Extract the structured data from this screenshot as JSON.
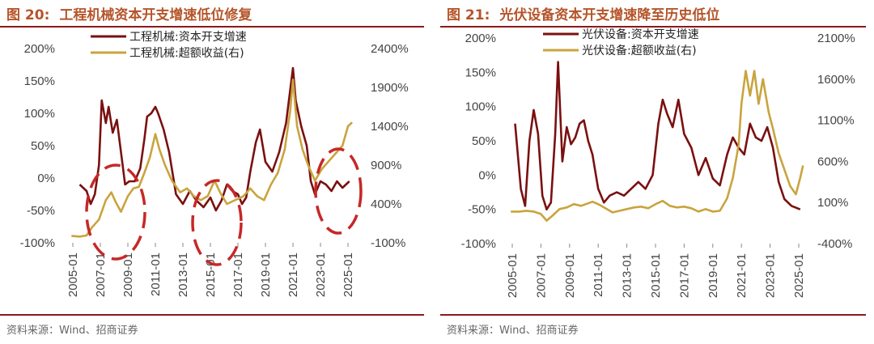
{
  "panels": [
    {
      "figure_number": "图 20:",
      "title": "工程机械资本开支增速低位修复",
      "source": "资料来源：Wind、招商证券"
    },
    {
      "figure_number": "图 21:",
      "title": "光伏设备资本开支增速降至历史低位",
      "source": "资料来源：Wind、招商证券"
    }
  ],
  "colors": {
    "capex": "#7a1010",
    "excess": "#c9a43e",
    "highlight": "#c62828",
    "rule": "#8a1a1a",
    "title": "#b5552a"
  },
  "chart_data": [
    {
      "type": "line",
      "title": "工程机械资本开支增速低位修复",
      "x_tick_labels": [
        "2005-01",
        "2007-01",
        "2009-01",
        "2011-01",
        "2013-01",
        "2015-01",
        "2017-01",
        "2019-01",
        "2021-01",
        "2023-01",
        "2025-01"
      ],
      "y_left": {
        "ticks": [
          "-100%",
          "-50%",
          "0%",
          "50%",
          "100%",
          "150%",
          "200%"
        ],
        "lim": [
          -100,
          200
        ]
      },
      "y_right": {
        "ticks": [
          "-100%",
          "400%",
          "900%",
          "1400%",
          "1900%",
          "2400%"
        ],
        "lim": [
          -100,
          2400
        ]
      },
      "legend": {
        "position": "top-center"
      },
      "highlights": [
        "2009",
        "2016",
        "2024"
      ],
      "series": [
        {
          "name": "工程机械:资本开支增速",
          "axis": "left",
          "points": [
            [
              2005.5,
              -10
            ],
            [
              2006.0,
              -20
            ],
            [
              2006.3,
              -40
            ],
            [
              2006.6,
              -25
            ],
            [
              2006.9,
              20
            ],
            [
              2007.1,
              120
            ],
            [
              2007.4,
              85
            ],
            [
              2007.6,
              110
            ],
            [
              2007.9,
              70
            ],
            [
              2008.2,
              90
            ],
            [
              2008.5,
              40
            ],
            [
              2008.8,
              -10
            ],
            [
              2009.1,
              -5
            ],
            [
              2009.5,
              -5
            ],
            [
              2009.9,
              15
            ],
            [
              2010.2,
              60
            ],
            [
              2010.4,
              95
            ],
            [
              2010.7,
              100
            ],
            [
              2011.0,
              110
            ],
            [
              2011.2,
              100
            ],
            [
              2011.6,
              75
            ],
            [
              2012.0,
              40
            ],
            [
              2012.5,
              -25
            ],
            [
              2013.0,
              -40
            ],
            [
              2013.5,
              -20
            ],
            [
              2014.0,
              -35
            ],
            [
              2014.5,
              -45
            ],
            [
              2015.0,
              -30
            ],
            [
              2015.4,
              -50
            ],
            [
              2015.8,
              -35
            ],
            [
              2016.2,
              -10
            ],
            [
              2016.6,
              -20
            ],
            [
              2017.0,
              -25
            ],
            [
              2017.3,
              -40
            ],
            [
              2017.6,
              -30
            ],
            [
              2017.9,
              10
            ],
            [
              2018.3,
              55
            ],
            [
              2018.6,
              75
            ],
            [
              2019.0,
              25
            ],
            [
              2019.5,
              10
            ],
            [
              2020.0,
              40
            ],
            [
              2020.5,
              85
            ],
            [
              2021.0,
              170
            ],
            [
              2021.2,
              120
            ],
            [
              2021.6,
              80
            ],
            [
              2022.0,
              50
            ],
            [
              2022.3,
              -5
            ],
            [
              2022.6,
              -25
            ],
            [
              2023.0,
              -5
            ],
            [
              2023.4,
              -10
            ],
            [
              2023.8,
              -20
            ],
            [
              2024.2,
              -5
            ],
            [
              2024.6,
              -15
            ],
            [
              2025.1,
              -5
            ]
          ]
        },
        {
          "name": "工程机械:超额收益(右)",
          "axis": "right",
          "points": [
            [
              2004.9,
              -10
            ],
            [
              2005.5,
              -20
            ],
            [
              2006.0,
              -5
            ],
            [
              2006.4,
              100
            ],
            [
              2006.9,
              200
            ],
            [
              2007.4,
              450
            ],
            [
              2007.8,
              550
            ],
            [
              2008.1,
              430
            ],
            [
              2008.5,
              300
            ],
            [
              2009.0,
              500
            ],
            [
              2009.4,
              600
            ],
            [
              2009.8,
              620
            ],
            [
              2010.2,
              800
            ],
            [
              2010.6,
              1000
            ],
            [
              2011.0,
              1300
            ],
            [
              2011.3,
              1100
            ],
            [
              2011.7,
              900
            ],
            [
              2012.2,
              700
            ],
            [
              2012.8,
              550
            ],
            [
              2013.3,
              600
            ],
            [
              2013.8,
              500
            ],
            [
              2014.3,
              450
            ],
            [
              2014.8,
              500
            ],
            [
              2015.3,
              700
            ],
            [
              2015.7,
              550
            ],
            [
              2016.2,
              400
            ],
            [
              2016.8,
              450
            ],
            [
              2017.4,
              500
            ],
            [
              2017.9,
              600
            ],
            [
              2018.4,
              500
            ],
            [
              2018.9,
              450
            ],
            [
              2019.4,
              650
            ],
            [
              2019.9,
              800
            ],
            [
              2020.4,
              1100
            ],
            [
              2020.8,
              1600
            ],
            [
              2021.0,
              2000
            ],
            [
              2021.3,
              1400
            ],
            [
              2021.7,
              1100
            ],
            [
              2022.1,
              900
            ],
            [
              2022.6,
              700
            ],
            [
              2023.1,
              850
            ],
            [
              2023.6,
              950
            ],
            [
              2024.1,
              1050
            ],
            [
              2024.6,
              1150
            ],
            [
              2025.0,
              1400
            ],
            [
              2025.3,
              1450
            ]
          ]
        }
      ]
    },
    {
      "type": "line",
      "title": "光伏设备资本开支增速降至历史低位",
      "x_tick_labels": [
        "2005-01",
        "2007-01",
        "2009-01",
        "2011-01",
        "2013-01",
        "2015-01",
        "2017-01",
        "2019-01",
        "2021-01",
        "2023-01",
        "2025-01"
      ],
      "y_left": {
        "ticks": [
          "-100%",
          "-50%",
          "0%",
          "50%",
          "100%",
          "150%",
          "200%"
        ],
        "lim": [
          -100,
          200
        ]
      },
      "y_right": {
        "ticks": [
          "-400%",
          "100%",
          "600%",
          "1100%",
          "1600%",
          "2100%"
        ],
        "lim": [
          -400,
          2100
        ]
      },
      "legend": {
        "position": "top-center"
      },
      "series": [
        {
          "name": "光伏设备:资本开支增速",
          "axis": "left",
          "points": [
            [
              2005.2,
              75
            ],
            [
              2005.6,
              -20
            ],
            [
              2005.9,
              -45
            ],
            [
              2006.2,
              50
            ],
            [
              2006.5,
              95
            ],
            [
              2006.8,
              60
            ],
            [
              2007.1,
              -30
            ],
            [
              2007.4,
              -50
            ],
            [
              2007.7,
              -40
            ],
            [
              2008.0,
              60
            ],
            [
              2008.2,
              165
            ],
            [
              2008.5,
              20
            ],
            [
              2008.8,
              70
            ],
            [
              2009.1,
              45
            ],
            [
              2009.4,
              55
            ],
            [
              2009.7,
              75
            ],
            [
              2010.0,
              80
            ],
            [
              2010.3,
              50
            ],
            [
              2010.6,
              30
            ],
            [
              2011.0,
              -20
            ],
            [
              2011.4,
              -40
            ],
            [
              2011.8,
              -30
            ],
            [
              2012.3,
              -25
            ],
            [
              2012.8,
              -30
            ],
            [
              2013.3,
              -20
            ],
            [
              2013.8,
              -10
            ],
            [
              2014.3,
              -20
            ],
            [
              2014.8,
              0
            ],
            [
              2015.2,
              75
            ],
            [
              2015.5,
              110
            ],
            [
              2015.8,
              90
            ],
            [
              2016.2,
              70
            ],
            [
              2016.6,
              110
            ],
            [
              2017.0,
              60
            ],
            [
              2017.5,
              40
            ],
            [
              2018.0,
              0
            ],
            [
              2018.5,
              25
            ],
            [
              2019.0,
              -5
            ],
            [
              2019.5,
              -15
            ],
            [
              2020.0,
              30
            ],
            [
              2020.4,
              55
            ],
            [
              2020.8,
              40
            ],
            [
              2021.2,
              30
            ],
            [
              2021.6,
              75
            ],
            [
              2022.0,
              55
            ],
            [
              2022.4,
              50
            ],
            [
              2022.8,
              70
            ],
            [
              2023.2,
              40
            ],
            [
              2023.6,
              -10
            ],
            [
              2024.0,
              -35
            ],
            [
              2024.5,
              -45
            ],
            [
              2025.1,
              -50
            ]
          ]
        },
        {
          "name": "光伏设备:超额收益(右)",
          "axis": "right",
          "points": [
            [
              2004.9,
              -10
            ],
            [
              2005.5,
              -10
            ],
            [
              2006.0,
              0
            ],
            [
              2006.5,
              -10
            ],
            [
              2007.0,
              -40
            ],
            [
              2007.4,
              -120
            ],
            [
              2007.8,
              -60
            ],
            [
              2008.3,
              20
            ],
            [
              2008.8,
              40
            ],
            [
              2009.3,
              80
            ],
            [
              2009.8,
              60
            ],
            [
              2010.3,
              90
            ],
            [
              2010.6,
              110
            ],
            [
              2011.0,
              80
            ],
            [
              2011.5,
              30
            ],
            [
              2012.0,
              -20
            ],
            [
              2012.5,
              0
            ],
            [
              2013.0,
              20
            ],
            [
              2013.5,
              40
            ],
            [
              2014.0,
              50
            ],
            [
              2014.5,
              30
            ],
            [
              2015.0,
              80
            ],
            [
              2015.5,
              120
            ],
            [
              2016.0,
              60
            ],
            [
              2016.5,
              40
            ],
            [
              2017.0,
              50
            ],
            [
              2017.5,
              30
            ],
            [
              2018.0,
              -10
            ],
            [
              2018.5,
              20
            ],
            [
              2019.0,
              -10
            ],
            [
              2019.5,
              0
            ],
            [
              2020.0,
              150
            ],
            [
              2020.4,
              400
            ],
            [
              2020.8,
              800
            ],
            [
              2021.0,
              1300
            ],
            [
              2021.3,
              1700
            ],
            [
              2021.6,
              1400
            ],
            [
              2021.9,
              1700
            ],
            [
              2022.2,
              1300
            ],
            [
              2022.5,
              1600
            ],
            [
              2022.9,
              1200
            ],
            [
              2023.2,
              1000
            ],
            [
              2023.6,
              700
            ],
            [
              2024.0,
              500
            ],
            [
              2024.4,
              300
            ],
            [
              2024.8,
              200
            ],
            [
              2025.1,
              400
            ],
            [
              2025.3,
              550
            ]
          ]
        }
      ]
    }
  ]
}
